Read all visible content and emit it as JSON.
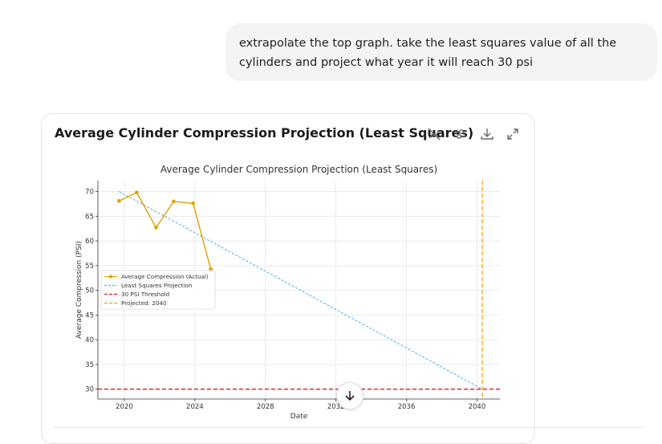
{
  "message": {
    "line1": "extrapolate the top graph.  take the least squares value of all the",
    "line2": "cylinders and project what year it will reach 30 psi"
  },
  "card": {
    "title": "Average Cylinder Compression Projection (Least Squares)",
    "icons": [
      "hide-chart-icon",
      "adjust-sliders-icon",
      "download-icon",
      "expand-icon"
    ]
  },
  "chart_data": {
    "type": "line",
    "title": "Average Cylinder Compression Projection (Least Squares)",
    "xlabel": "Date",
    "ylabel": "Average Compression (PSI)",
    "xlim": [
      2018.5,
      2041.3
    ],
    "ylim": [
      28,
      72.2
    ],
    "xticks": [
      2020,
      2024,
      2028,
      2032,
      2036,
      2040
    ],
    "yticks": [
      30,
      35,
      40,
      45,
      50,
      55,
      60,
      65,
      70
    ],
    "grid": true,
    "legend_position": "center-left",
    "series": [
      {
        "name": "Average Compression (Actual)",
        "color": "#E69F00",
        "style": "solid-marker",
        "x": [
          2019.7,
          2020.7,
          2021.8,
          2022.8,
          2023.9,
          2024.9
        ],
        "y": [
          68.1,
          69.8,
          62.7,
          68.0,
          67.6,
          54.3
        ]
      },
      {
        "name": "Least Squares Projection",
        "color": "#56B4E9",
        "style": "dashed",
        "x": [
          2019.7,
          2040.3
        ],
        "y": [
          70.0,
          30.0
        ]
      },
      {
        "name": "30 PSI Threshold",
        "color": "#E41A1C",
        "style": "dashed-horizontal",
        "y": 30
      },
      {
        "name": "Projected: 2040",
        "color": "#FFA500",
        "style": "dashed-vertical",
        "x": 2040.3
      }
    ]
  },
  "scroll_button_icon": "arrow-down-icon"
}
